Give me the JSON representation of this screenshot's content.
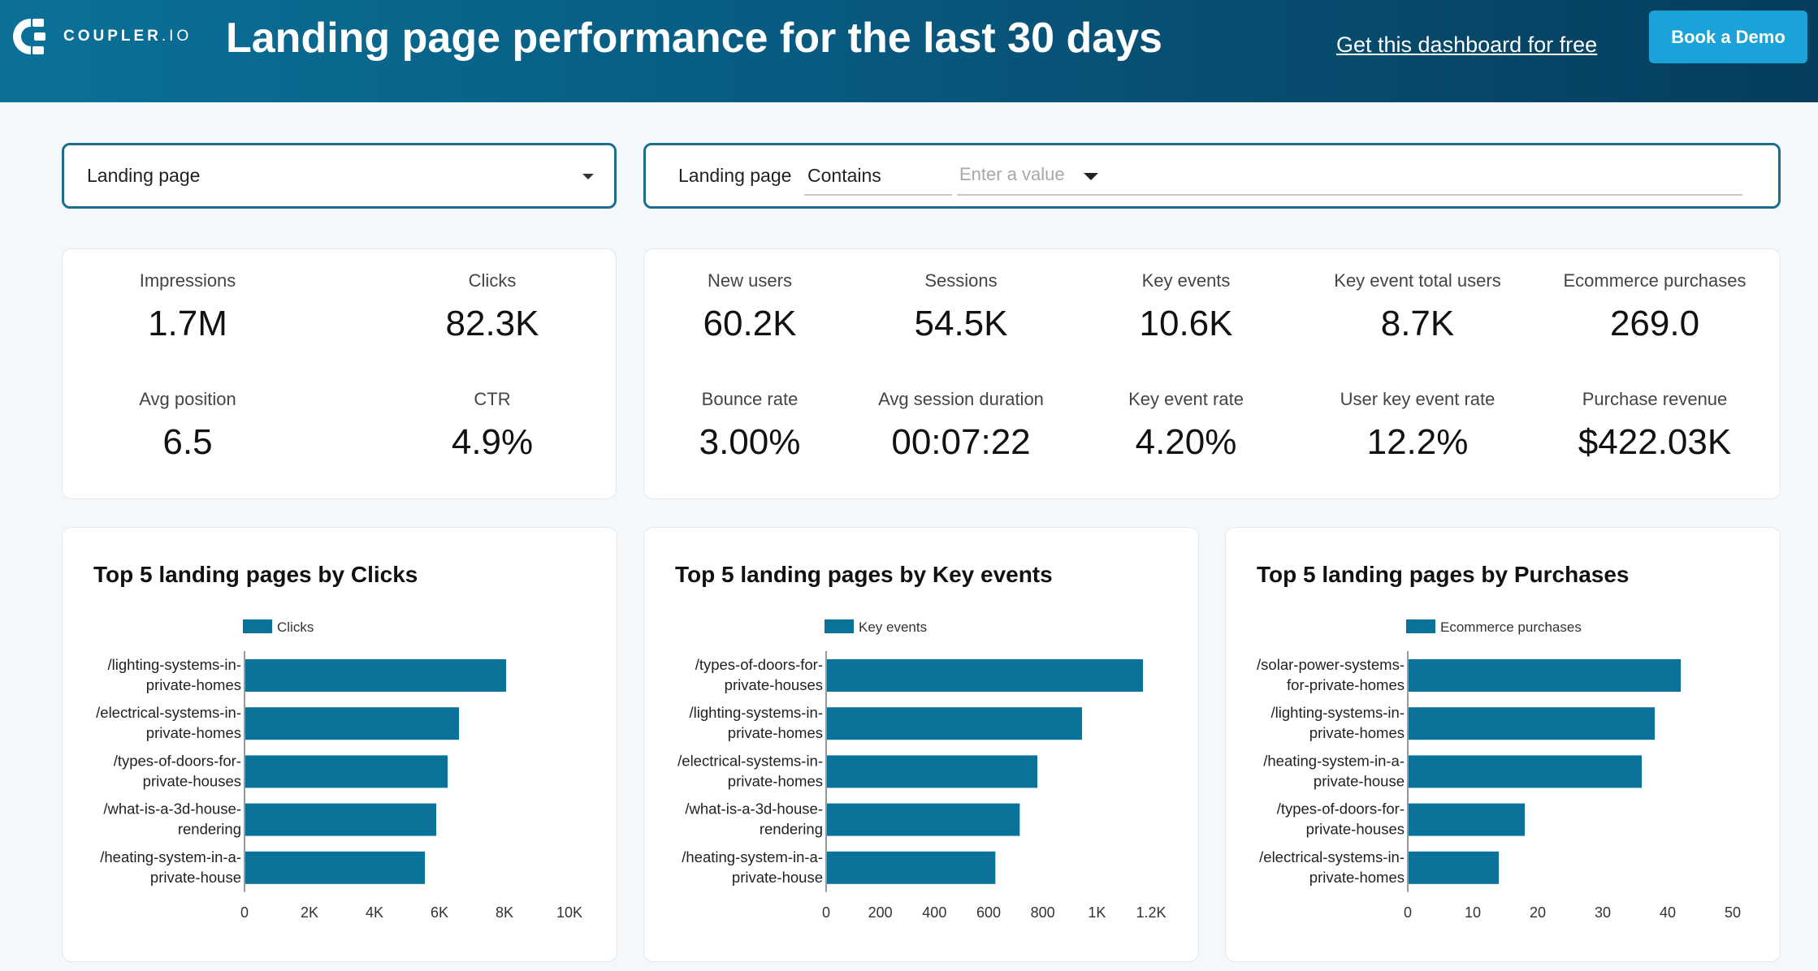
{
  "header": {
    "logo_text": "COUPLER",
    "logo_suffix": ".IO",
    "title": "Landing page performance for the last 30 days",
    "free_link": "Get this dashboard for free",
    "demo_button": "Book a Demo",
    "brand_color": "#085a80"
  },
  "filters": {
    "dimension_select": "Landing page",
    "text_filter": {
      "label": "Landing page",
      "operator": "Contains",
      "value": "",
      "placeholder": "Enter a value"
    }
  },
  "search_console_kpis": [
    {
      "label": "Impressions",
      "value": "1.7M"
    },
    {
      "label": "Clicks",
      "value": "82.3K"
    },
    {
      "label": "Avg position",
      "value": "6.5"
    },
    {
      "label": "CTR",
      "value": "4.9%"
    }
  ],
  "analytics_kpis": [
    {
      "label": "New users",
      "value": "60.2K"
    },
    {
      "label": "Sessions",
      "value": "54.5K"
    },
    {
      "label": "Key events",
      "value": "10.6K"
    },
    {
      "label": "Key event total users",
      "value": "8.7K"
    },
    {
      "label": "Ecommerce purchases",
      "value": "269.0"
    },
    {
      "label": "Bounce rate",
      "value": "3.00%"
    },
    {
      "label": "Avg session duration",
      "value": "00:07:22"
    },
    {
      "label": "Key event rate",
      "value": "4.20%"
    },
    {
      "label": "User key event rate",
      "value": "12.2%"
    },
    {
      "label": "Purchase revenue",
      "value": "$422.03K"
    }
  ],
  "chart_data": [
    {
      "type": "bar",
      "orientation": "horizontal",
      "title": "Top 5 landing pages by Clicks",
      "legend": "Clicks",
      "color": "#0a7399",
      "categories": [
        [
          "/lighting-systems-in-",
          "private-homes"
        ],
        [
          "/electrical-systems-in-",
          "private-homes"
        ],
        [
          "/types-of-doors-for-",
          "private-houses"
        ],
        [
          "/what-is-a-3d-house-",
          "rendering"
        ],
        [
          "/heating-system-in-a-",
          "private-house"
        ]
      ],
      "values": [
        8050,
        6600,
        6250,
        5900,
        5550
      ],
      "xlim": [
        0,
        10000
      ],
      "ticks": [
        0,
        2000,
        4000,
        6000,
        8000,
        10000
      ],
      "tick_labels": [
        "0",
        "2K",
        "4K",
        "6K",
        "8K",
        "10K"
      ]
    },
    {
      "type": "bar",
      "orientation": "horizontal",
      "title": "Top 5 landing pages by Key events",
      "legend": "Key events",
      "color": "#0a7399",
      "categories": [
        [
          "/types-of-doors-for-",
          "private-houses"
        ],
        [
          "/lighting-systems-in-",
          "private-homes"
        ],
        [
          "/electrical-systems-in-",
          "private-homes"
        ],
        [
          "/what-is-a-3d-house-",
          "rendering"
        ],
        [
          "/heating-system-in-a-",
          "private-house"
        ]
      ],
      "values": [
        1170,
        945,
        780,
        715,
        625
      ],
      "xlim": [
        0,
        1200
      ],
      "ticks": [
        0,
        200,
        400,
        600,
        800,
        1000,
        1200
      ],
      "tick_labels": [
        "0",
        "200",
        "400",
        "600",
        "800",
        "1K",
        "1.2K"
      ]
    },
    {
      "type": "bar",
      "orientation": "horizontal",
      "title": "Top 5 landing pages by Purchases",
      "legend": "Ecommerce purchases",
      "color": "#0a7399",
      "categories": [
        [
          "/solar-power-systems-",
          "for-private-homes"
        ],
        [
          "/lighting-systems-in-",
          "private-homes"
        ],
        [
          "/heating-system-in-a-",
          "private-house"
        ],
        [
          "/types-of-doors-for-",
          "private-houses"
        ],
        [
          "/electrical-systems-in-",
          "private-homes"
        ]
      ],
      "values": [
        42,
        38,
        36,
        18,
        14
      ],
      "xlim": [
        0,
        50
      ],
      "ticks": [
        0,
        10,
        20,
        30,
        40,
        50
      ],
      "tick_labels": [
        "0",
        "10",
        "20",
        "30",
        "40",
        "50"
      ]
    }
  ]
}
